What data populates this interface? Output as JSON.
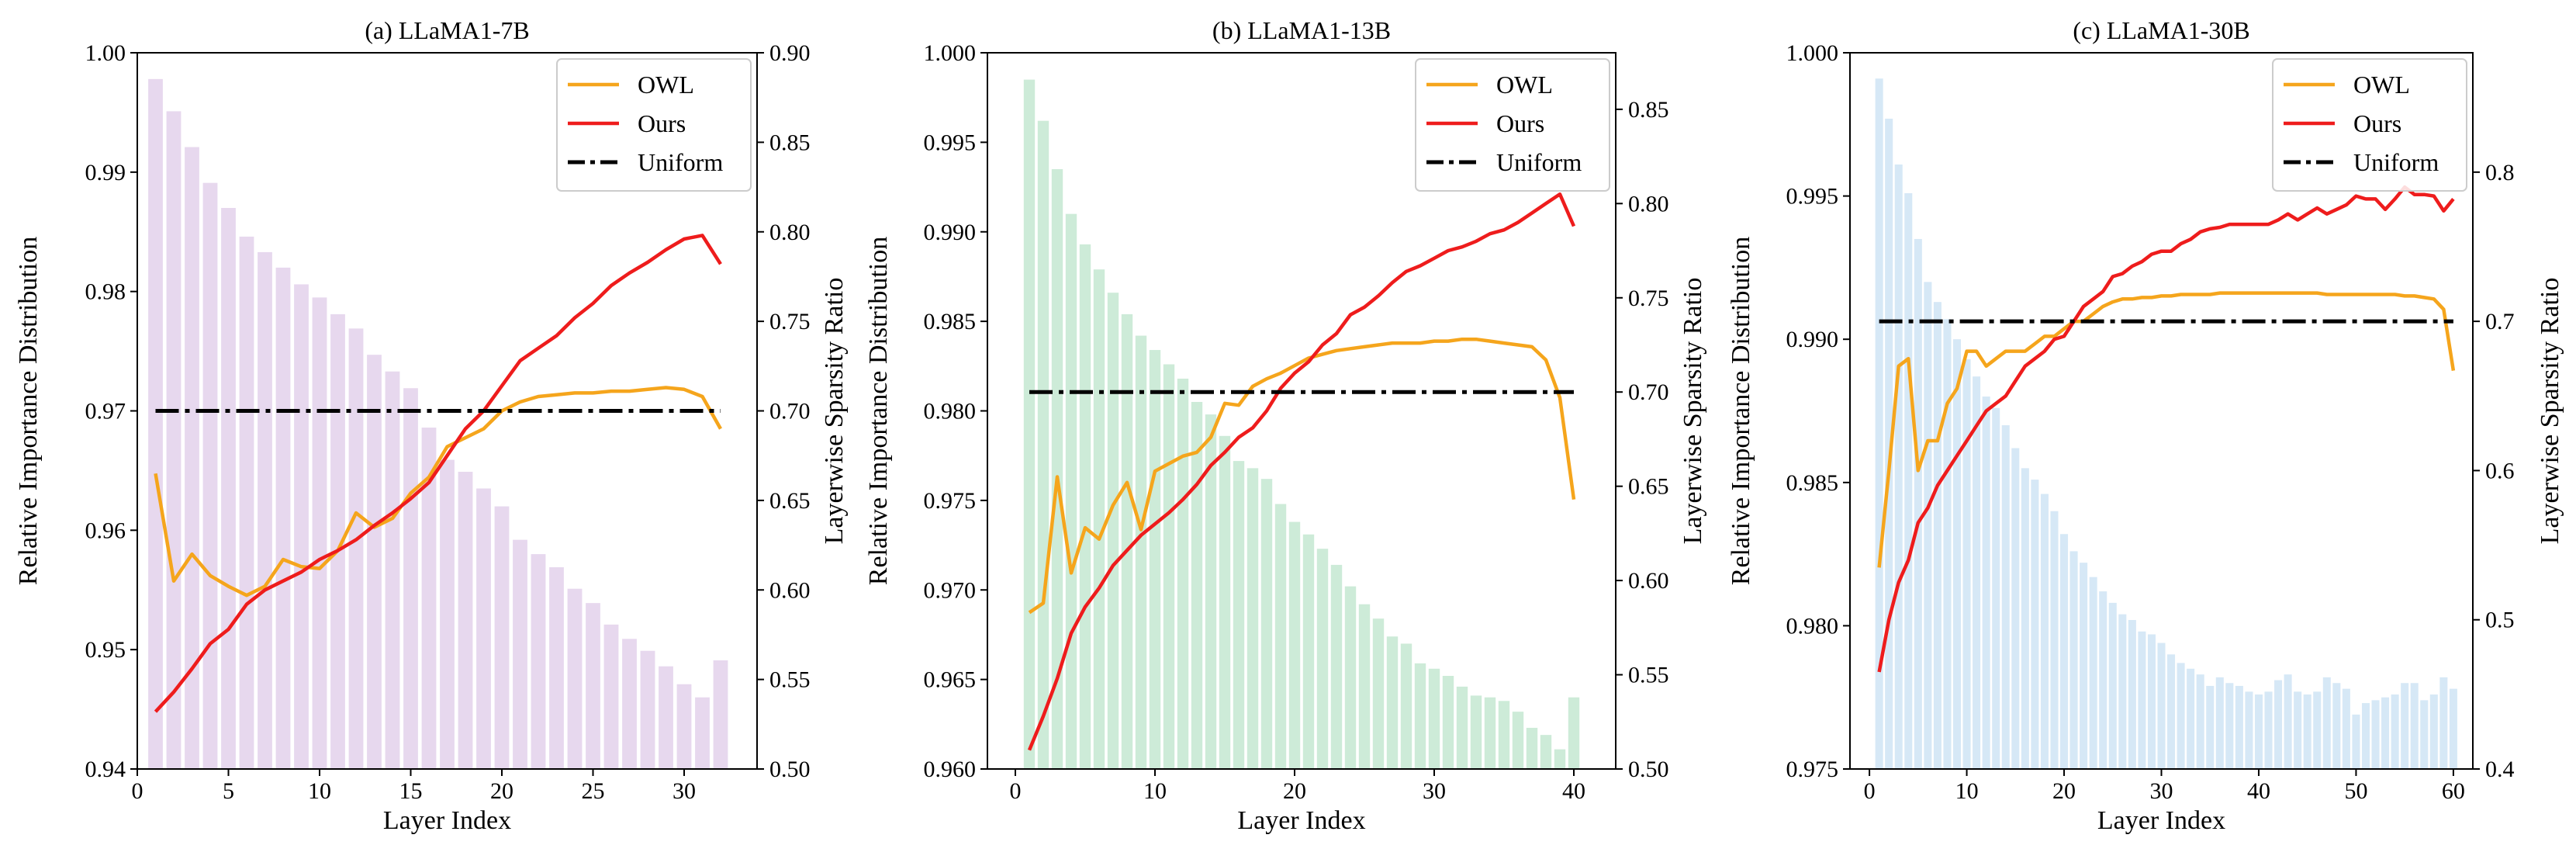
{
  "chart_data": [
    {
      "type": "bar+line",
      "title": "(a) LLaMA1-7B",
      "xlabel": "Layer Index",
      "ylabel_left": "Relative Importance Distribution",
      "ylabel_right": "Layerwise Sparsity Ratio",
      "xlim": [
        0,
        34
      ],
      "ylim_left": [
        0.94,
        1.0
      ],
      "ylim_right": [
        0.5,
        0.9
      ],
      "xticks": [
        0,
        5,
        10,
        15,
        20,
        25,
        30
      ],
      "xtick_labels": [
        "0",
        "5",
        "10",
        "15",
        "20",
        "25",
        "30"
      ],
      "yticks_left": [
        0.94,
        0.95,
        0.96,
        0.97,
        0.98,
        0.99,
        1.0
      ],
      "ytick_labels_left": [
        "0.94",
        "0.95",
        "0.96",
        "0.97",
        "0.98",
        "0.99",
        "1.00"
      ],
      "yticks_right": [
        0.5,
        0.55,
        0.6,
        0.65,
        0.7,
        0.75,
        0.8,
        0.85,
        0.9
      ],
      "ytick_labels_right": [
        "0.50",
        "0.55",
        "0.60",
        "0.65",
        "0.70",
        "0.75",
        "0.80",
        "0.85",
        "0.90"
      ],
      "bar_color": "#e7d8ee",
      "bars": {
        "x": [
          1,
          2,
          3,
          4,
          5,
          6,
          7,
          8,
          9,
          10,
          11,
          12,
          13,
          14,
          15,
          16,
          17,
          18,
          19,
          20,
          21,
          22,
          23,
          24,
          25,
          26,
          27,
          28,
          29,
          30,
          31,
          32
        ],
        "values": [
          0.9978,
          0.9951,
          0.9921,
          0.9891,
          0.987,
          0.9846,
          0.9833,
          0.982,
          0.9806,
          0.9795,
          0.9781,
          0.9769,
          0.9747,
          0.9733,
          0.9719,
          0.9686,
          0.9659,
          0.9649,
          0.9635,
          0.962,
          0.9592,
          0.958,
          0.9569,
          0.9551,
          0.9539,
          0.9521,
          0.9509,
          0.9499,
          0.9486,
          0.9471,
          0.946,
          0.9491
        ]
      },
      "series": [
        {
          "name": "OWL",
          "color": "#f5a51c",
          "axis": "right",
          "style": "solid",
          "x": [
            1,
            2,
            3,
            4,
            5,
            6,
            7,
            8,
            9,
            10,
            11,
            12,
            13,
            14,
            15,
            16,
            17,
            18,
            19,
            20,
            21,
            22,
            23,
            24,
            25,
            26,
            27,
            28,
            29,
            30,
            31,
            32
          ],
          "values": [
            0.665,
            0.605,
            0.62,
            0.608,
            0.602,
            0.597,
            0.602,
            0.617,
            0.613,
            0.612,
            0.622,
            0.643,
            0.635,
            0.64,
            0.654,
            0.663,
            0.68,
            0.685,
            0.69,
            0.7,
            0.705,
            0.708,
            0.709,
            0.71,
            0.71,
            0.711,
            0.711,
            0.712,
            0.713,
            0.712,
            0.708,
            0.69
          ]
        },
        {
          "name": "Ours",
          "color": "#ee1c1c",
          "axis": "right",
          "style": "solid",
          "x": [
            1,
            2,
            3,
            4,
            5,
            6,
            7,
            8,
            9,
            10,
            11,
            12,
            13,
            14,
            15,
            16,
            17,
            18,
            19,
            20,
            21,
            22,
            23,
            24,
            25,
            26,
            27,
            28,
            29,
            30,
            31,
            32
          ],
          "values": [
            0.532,
            0.543,
            0.556,
            0.57,
            0.578,
            0.592,
            0.6,
            0.605,
            0.61,
            0.617,
            0.622,
            0.628,
            0.636,
            0.643,
            0.651,
            0.66,
            0.675,
            0.69,
            0.7,
            0.714,
            0.728,
            0.735,
            0.742,
            0.752,
            0.76,
            0.77,
            0.777,
            0.783,
            0.79,
            0.796,
            0.798,
            0.782
          ]
        },
        {
          "name": "Uniform",
          "color": "#000000",
          "axis": "right",
          "style": "dashdot",
          "x": [
            1,
            32
          ],
          "values": [
            0.7,
            0.7
          ]
        }
      ],
      "legend": {
        "position": "top-right",
        "entries": [
          "OWL",
          "Ours",
          "Uniform"
        ]
      }
    },
    {
      "type": "bar+line",
      "title": "(b) LLaMA1-13B",
      "xlabel": "Layer Index",
      "ylabel_left": "Relative Importance Distribution",
      "ylabel_right": "Layerwise Sparsity Ratio",
      "xlim": [
        -2,
        43
      ],
      "ylim_left": [
        0.96,
        1.0
      ],
      "ylim_right": [
        0.5,
        0.88
      ],
      "xticks": [
        0,
        10,
        20,
        30,
        40
      ],
      "xtick_labels": [
        "0",
        "10",
        "20",
        "30",
        "40"
      ],
      "yticks_left": [
        0.96,
        0.965,
        0.97,
        0.975,
        0.98,
        0.985,
        0.99,
        0.995,
        1.0
      ],
      "ytick_labels_left": [
        "0.960",
        "0.965",
        "0.970",
        "0.975",
        "0.980",
        "0.985",
        "0.990",
        "0.995",
        "1.000"
      ],
      "yticks_right": [
        0.5,
        0.55,
        0.6,
        0.65,
        0.7,
        0.75,
        0.8,
        0.85
      ],
      "ytick_labels_right": [
        "0.50",
        "0.55",
        "0.60",
        "0.65",
        "0.70",
        "0.75",
        "0.80",
        "0.85"
      ],
      "bar_color": "#cdebd8",
      "bars": {
        "x": [
          1,
          2,
          3,
          4,
          5,
          6,
          7,
          8,
          9,
          10,
          11,
          12,
          13,
          14,
          15,
          16,
          17,
          18,
          19,
          20,
          21,
          22,
          23,
          24,
          25,
          26,
          27,
          28,
          29,
          30,
          31,
          32,
          33,
          34,
          35,
          36,
          37,
          38,
          39,
          40
        ],
        "values": [
          0.9985,
          0.9962,
          0.9935,
          0.991,
          0.9893,
          0.9879,
          0.9866,
          0.9854,
          0.9842,
          0.9834,
          0.9826,
          0.9818,
          0.9805,
          0.9798,
          0.9786,
          0.9772,
          0.9768,
          0.9762,
          0.9748,
          0.9738,
          0.9731,
          0.9723,
          0.9714,
          0.9702,
          0.9692,
          0.9684,
          0.9674,
          0.967,
          0.9659,
          0.9656,
          0.9652,
          0.9646,
          0.9641,
          0.964,
          0.9638,
          0.9632,
          0.9623,
          0.9619,
          0.9611,
          0.964
        ]
      },
      "series": [
        {
          "name": "OWL",
          "color": "#f5a51c",
          "axis": "right",
          "style": "solid",
          "x": [
            1,
            2,
            3,
            4,
            5,
            6,
            7,
            8,
            9,
            10,
            11,
            12,
            13,
            14,
            15,
            16,
            17,
            18,
            19,
            20,
            21,
            22,
            23,
            24,
            25,
            26,
            27,
            28,
            29,
            30,
            31,
            32,
            33,
            34,
            35,
            36,
            37,
            38,
            39,
            40
          ],
          "values": [
            0.583,
            0.588,
            0.655,
            0.604,
            0.628,
            0.622,
            0.64,
            0.652,
            0.627,
            0.658,
            0.662,
            0.666,
            0.668,
            0.676,
            0.694,
            0.693,
            0.703,
            0.707,
            0.71,
            0.714,
            0.718,
            0.72,
            0.722,
            0.723,
            0.724,
            0.725,
            0.726,
            0.726,
            0.726,
            0.727,
            0.727,
            0.728,
            0.728,
            0.727,
            0.726,
            0.725,
            0.724,
            0.717,
            0.697,
            0.643
          ]
        },
        {
          "name": "Ours",
          "color": "#ee1c1c",
          "axis": "right",
          "style": "solid",
          "x": [
            1,
            2,
            3,
            4,
            5,
            6,
            7,
            8,
            9,
            10,
            11,
            12,
            13,
            14,
            15,
            16,
            17,
            18,
            19,
            20,
            21,
            22,
            23,
            24,
            25,
            26,
            27,
            28,
            29,
            30,
            31,
            32,
            33,
            34,
            35,
            36,
            37,
            38,
            39,
            40
          ],
          "values": [
            0.51,
            0.528,
            0.548,
            0.572,
            0.586,
            0.596,
            0.608,
            0.616,
            0.624,
            0.63,
            0.636,
            0.643,
            0.651,
            0.661,
            0.668,
            0.676,
            0.681,
            0.69,
            0.702,
            0.71,
            0.716,
            0.725,
            0.731,
            0.741,
            0.745,
            0.751,
            0.758,
            0.764,
            0.767,
            0.771,
            0.775,
            0.777,
            0.78,
            0.784,
            0.786,
            0.79,
            0.795,
            0.8,
            0.805,
            0.788
          ]
        },
        {
          "name": "Uniform",
          "color": "#000000",
          "axis": "right",
          "style": "dashdot",
          "x": [
            1,
            40
          ],
          "values": [
            0.7,
            0.7
          ]
        }
      ],
      "legend": {
        "position": "top-right",
        "entries": [
          "OWL",
          "Ours",
          "Uniform"
        ]
      }
    },
    {
      "type": "bar+line",
      "title": "(c) LLaMA1-30B",
      "xlabel": "Layer Index",
      "ylabel_left": "Relative Importance Distribution",
      "ylabel_right": "Layerwise Sparsity Ratio",
      "xlim": [
        -2,
        62
      ],
      "ylim_left": [
        0.975,
        1.0
      ],
      "ylim_right": [
        0.4,
        0.88
      ],
      "xticks": [
        0,
        10,
        20,
        30,
        40,
        50,
        60
      ],
      "xtick_labels": [
        "0",
        "10",
        "20",
        "30",
        "40",
        "50",
        "60"
      ],
      "yticks_left": [
        0.975,
        0.98,
        0.985,
        0.99,
        0.995,
        1.0
      ],
      "ytick_labels_left": [
        "0.975",
        "0.980",
        "0.985",
        "0.990",
        "0.995",
        "1.000"
      ],
      "yticks_right": [
        0.4,
        0.5,
        0.6,
        0.7,
        0.8
      ],
      "ytick_labels_right": [
        "0.4",
        "0.5",
        "0.6",
        "0.7",
        "0.8"
      ],
      "bar_color": "#d6e8f6",
      "bars": {
        "x": [
          1,
          2,
          3,
          4,
          5,
          6,
          7,
          8,
          9,
          10,
          11,
          12,
          13,
          14,
          15,
          16,
          17,
          18,
          19,
          20,
          21,
          22,
          23,
          24,
          25,
          26,
          27,
          28,
          29,
          30,
          31,
          32,
          33,
          34,
          35,
          36,
          37,
          38,
          39,
          40,
          41,
          42,
          43,
          44,
          45,
          46,
          47,
          48,
          49,
          50,
          51,
          52,
          53,
          54,
          55,
          56,
          57,
          58,
          59,
          60
        ],
        "values": [
          0.9991,
          0.9977,
          0.9961,
          0.9951,
          0.9935,
          0.992,
          0.9913,
          0.9907,
          0.99,
          0.9893,
          0.9887,
          0.988,
          0.9876,
          0.987,
          0.9862,
          0.9855,
          0.9851,
          0.9846,
          0.984,
          0.9832,
          0.9826,
          0.9822,
          0.9817,
          0.9812,
          0.9808,
          0.9804,
          0.9802,
          0.9798,
          0.9797,
          0.9794,
          0.979,
          0.9787,
          0.9785,
          0.9783,
          0.9779,
          0.9782,
          0.978,
          0.9779,
          0.9777,
          0.9776,
          0.9777,
          0.9781,
          0.9783,
          0.9777,
          0.9776,
          0.9777,
          0.9782,
          0.978,
          0.9778,
          0.9769,
          0.9773,
          0.9774,
          0.9775,
          0.9776,
          0.978,
          0.978,
          0.9774,
          0.9776,
          0.9782,
          0.9778
        ]
      },
      "series": [
        {
          "name": "OWL",
          "color": "#f5a51c",
          "axis": "right",
          "style": "solid",
          "x": [
            1,
            2,
            3,
            4,
            5,
            6,
            7,
            8,
            9,
            10,
            11,
            12,
            13,
            14,
            15,
            16,
            17,
            18,
            19,
            20,
            21,
            22,
            23,
            24,
            25,
            26,
            27,
            28,
            29,
            30,
            31,
            32,
            33,
            34,
            35,
            36,
            37,
            38,
            39,
            40,
            41,
            42,
            43,
            44,
            45,
            46,
            47,
            48,
            49,
            50,
            51,
            52,
            53,
            54,
            55,
            56,
            57,
            58,
            59,
            60
          ],
          "values": [
            0.535,
            0.6,
            0.67,
            0.675,
            0.6,
            0.62,
            0.62,
            0.645,
            0.655,
            0.68,
            0.68,
            0.67,
            0.675,
            0.68,
            0.68,
            0.68,
            0.685,
            0.69,
            0.69,
            0.695,
            0.7,
            0.7,
            0.705,
            0.71,
            0.713,
            0.715,
            0.715,
            0.716,
            0.716,
            0.717,
            0.717,
            0.718,
            0.718,
            0.718,
            0.718,
            0.719,
            0.719,
            0.719,
            0.719,
            0.719,
            0.719,
            0.719,
            0.719,
            0.719,
            0.719,
            0.719,
            0.718,
            0.718,
            0.718,
            0.718,
            0.718,
            0.718,
            0.718,
            0.718,
            0.717,
            0.717,
            0.716,
            0.715,
            0.708,
            0.667
          ]
        },
        {
          "name": "Ours",
          "color": "#ee1c1c",
          "axis": "right",
          "style": "solid",
          "x": [
            1,
            2,
            3,
            4,
            5,
            6,
            7,
            8,
            9,
            10,
            11,
            12,
            13,
            14,
            15,
            16,
            17,
            18,
            19,
            20,
            21,
            22,
            23,
            24,
            25,
            26,
            27,
            28,
            29,
            30,
            31,
            32,
            33,
            34,
            35,
            36,
            37,
            38,
            39,
            40,
            41,
            42,
            43,
            44,
            45,
            46,
            47,
            48,
            49,
            50,
            51,
            52,
            53,
            54,
            55,
            56,
            57,
            58,
            59,
            60
          ],
          "values": [
            0.465,
            0.5,
            0.525,
            0.54,
            0.565,
            0.575,
            0.59,
            0.6,
            0.61,
            0.62,
            0.63,
            0.64,
            0.645,
            0.65,
            0.66,
            0.67,
            0.675,
            0.68,
            0.688,
            0.69,
            0.7,
            0.71,
            0.715,
            0.72,
            0.73,
            0.732,
            0.737,
            0.74,
            0.745,
            0.747,
            0.747,
            0.752,
            0.755,
            0.76,
            0.762,
            0.763,
            0.765,
            0.765,
            0.765,
            0.765,
            0.765,
            0.768,
            0.772,
            0.768,
            0.772,
            0.776,
            0.772,
            0.775,
            0.778,
            0.784,
            0.782,
            0.782,
            0.775,
            0.782,
            0.79,
            0.785,
            0.785,
            0.784,
            0.774,
            0.782
          ]
        },
        {
          "name": "Uniform",
          "color": "#000000",
          "axis": "right",
          "style": "dashdot",
          "x": [
            1,
            60
          ],
          "values": [
            0.7,
            0.7
          ]
        }
      ],
      "legend": {
        "position": "top-right",
        "entries": [
          "OWL",
          "Ours",
          "Uniform"
        ]
      }
    }
  ]
}
